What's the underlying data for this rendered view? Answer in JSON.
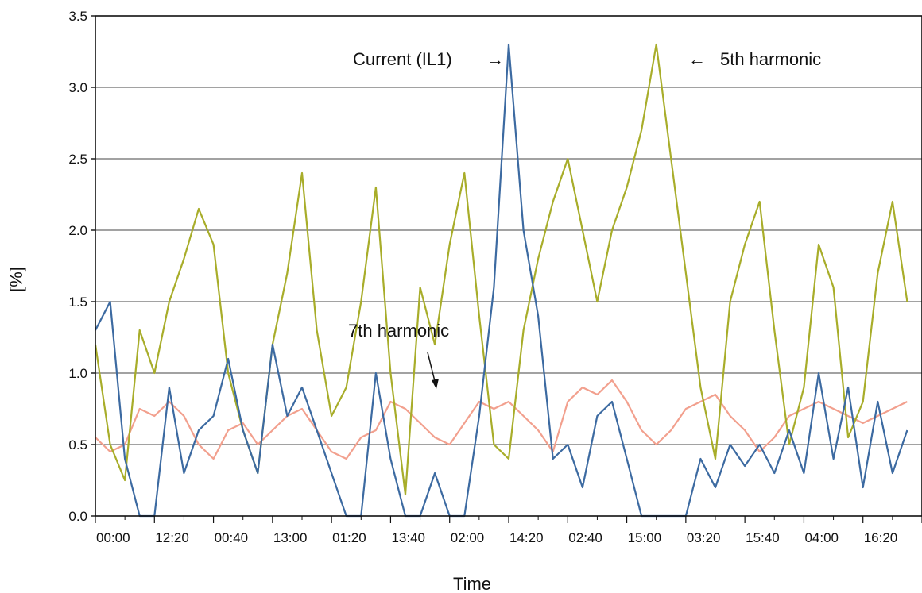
{
  "chart_data": {
    "type": "line",
    "title": "",
    "xlabel": "Time",
    "ylabel": "[%]",
    "ylim": [
      0,
      3.5
    ],
    "yticks": [
      "0.0",
      "0.5",
      "1.0",
      "1.5",
      "2.0",
      "2.5",
      "3.0",
      "3.5"
    ],
    "xticks": [
      "00:00",
      "12:20",
      "00:40",
      "13:00",
      "01:20",
      "13:40",
      "02:00",
      "14:20",
      "02:40",
      "15:00",
      "03:20",
      "15:40",
      "04:00",
      "16:20"
    ],
    "grid": "horizontal",
    "legend": "none",
    "x": [
      0,
      0.25,
      0.5,
      0.75,
      1,
      1.25,
      1.5,
      1.75,
      2,
      2.25,
      2.5,
      2.75,
      3,
      3.25,
      3.5,
      3.75,
      4,
      4.25,
      4.5,
      4.75,
      5,
      5.25,
      5.5,
      5.75,
      6,
      6.25,
      6.5,
      6.75,
      7,
      7.25,
      7.5,
      7.75,
      8,
      8.25,
      8.5,
      8.75,
      9,
      9.25,
      9.5,
      9.75,
      10,
      10.25,
      10.5,
      10.75,
      11,
      11.25,
      11.5,
      11.75,
      12,
      12.25,
      12.5,
      12.75,
      13,
      13.25,
      13.5,
      13.75
    ],
    "series": [
      {
        "name": "5th harmonic",
        "color": "#a8ad2a",
        "values": [
          1.2,
          0.5,
          0.25,
          1.3,
          1.0,
          1.5,
          1.8,
          2.15,
          1.9,
          1.0,
          0.6,
          0.3,
          1.2,
          1.7,
          2.4,
          1.3,
          0.7,
          0.9,
          1.5,
          2.3,
          1.0,
          0.15,
          1.6,
          1.2,
          1.9,
          2.4,
          1.4,
          0.5,
          0.4,
          1.3,
          1.8,
          2.2,
          2.5,
          2.0,
          1.5,
          2.0,
          2.3,
          2.7,
          3.3,
          2.5,
          1.7,
          0.9,
          0.4,
          1.5,
          1.9,
          2.2,
          1.3,
          0.5,
          0.9,
          1.9,
          1.6,
          0.55,
          0.8,
          1.7,
          2.2,
          1.5
        ]
      },
      {
        "name": "Current (IL1)",
        "color": "#3c6aa1",
        "values": [
          1.3,
          1.5,
          0.4,
          0.0,
          0.0,
          0.9,
          0.3,
          0.6,
          0.7,
          1.1,
          0.6,
          0.3,
          1.2,
          0.7,
          0.9,
          0.6,
          0.3,
          0.0,
          0.0,
          1.0,
          0.4,
          0.0,
          0.0,
          0.3,
          0.0,
          0.0,
          0.7,
          1.6,
          3.3,
          2.0,
          1.4,
          0.4,
          0.5,
          0.2,
          0.7,
          0.8,
          0.4,
          0.0,
          0.0,
          0.0,
          0.0,
          0.4,
          0.2,
          0.5,
          0.35,
          0.5,
          0.3,
          0.6,
          0.3,
          1.0,
          0.4,
          0.9,
          0.2,
          0.8,
          0.3,
          0.6
        ]
      },
      {
        "name": "7th harmonic",
        "color": "#f2a08e",
        "values": [
          0.55,
          0.45,
          0.5,
          0.75,
          0.7,
          0.8,
          0.7,
          0.5,
          0.4,
          0.6,
          0.65,
          0.5,
          0.6,
          0.7,
          0.75,
          0.6,
          0.45,
          0.4,
          0.55,
          0.6,
          0.8,
          0.75,
          0.65,
          0.55,
          0.5,
          0.65,
          0.8,
          0.75,
          0.8,
          0.7,
          0.6,
          0.45,
          0.8,
          0.9,
          0.85,
          0.95,
          0.8,
          0.6,
          0.5,
          0.6,
          0.75,
          0.8,
          0.85,
          0.7,
          0.6,
          0.45,
          0.55,
          0.7,
          0.75,
          0.8,
          0.75,
          0.7,
          0.65,
          0.7,
          0.75,
          0.8
        ]
      }
    ],
    "annotations": [
      {
        "text": "Current (IL1)",
        "arrow": "right"
      },
      {
        "text": "5th harmonic",
        "arrow": "left"
      },
      {
        "text": "7th harmonic",
        "arrow": "down"
      }
    ],
    "arrow_glyphs": {
      "right": "→",
      "left": "←"
    }
  }
}
